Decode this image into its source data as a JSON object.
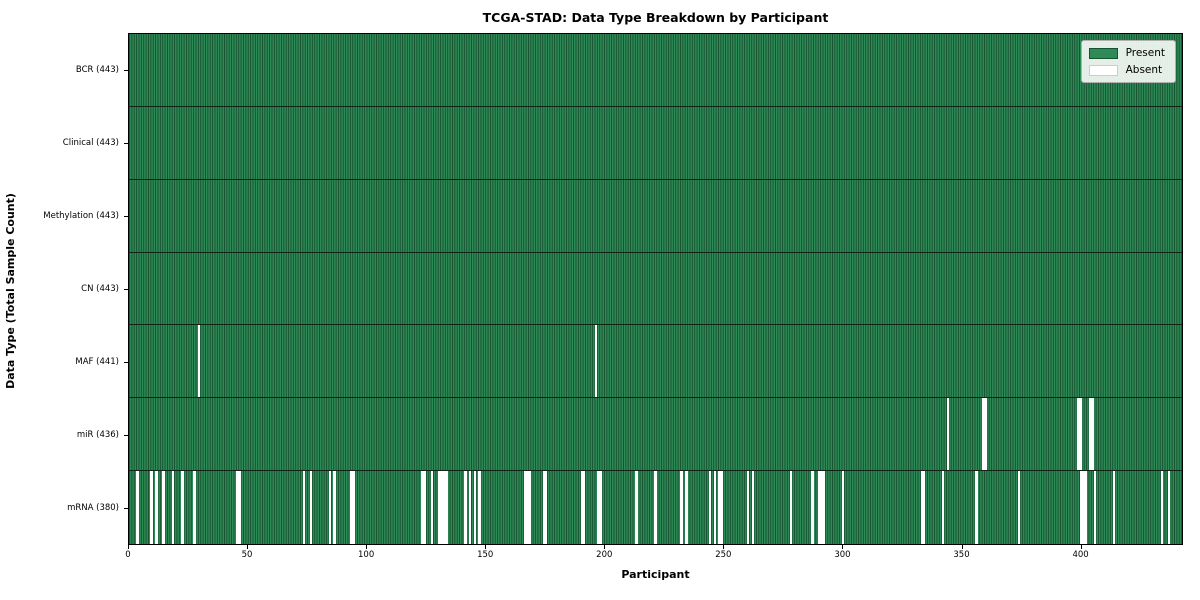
{
  "title": "TCGA-STAD: Data Type Breakdown by Participant",
  "xlabel": "Participant",
  "ylabel": "Data Type (Total Sample Count)",
  "legend": {
    "present_label": "Present",
    "absent_label": "Absent"
  },
  "colors": {
    "present": "#2e8b57",
    "present_edge": "#16522f",
    "absent": "#ffffff",
    "row_divider": "#0d2417",
    "spine": "#000000",
    "legend_bg": "#eef2ec",
    "legend_border": "#b0b0b0"
  },
  "chart_data": {
    "type": "heatmap",
    "title": "TCGA-STAD: Data Type Breakdown by Participant",
    "xlabel": "Participant",
    "ylabel": "Data Type (Total Sample Count)",
    "x_range": [
      0,
      443
    ],
    "x_ticks": [
      0,
      50,
      100,
      150,
      200,
      250,
      300,
      350,
      400
    ],
    "n_participants": 443,
    "legend_entries": [
      "Present",
      "Absent"
    ],
    "legend_position": "upper right",
    "grid": false,
    "rows": [
      {
        "name": "BCR",
        "label": "BCR (443)",
        "present_count": 443,
        "absent_participants": []
      },
      {
        "name": "Clinical",
        "label": "Clinical (443)",
        "present_count": 443,
        "absent_participants": []
      },
      {
        "name": "Methylation",
        "label": "Methylation (443)",
        "present_count": 443,
        "absent_participants": []
      },
      {
        "name": "CN",
        "label": "CN (443)",
        "present_count": 443,
        "absent_participants": []
      },
      {
        "name": "MAF",
        "label": "MAF (441)",
        "present_count": 441,
        "absent_participants": [
          29,
          196
        ]
      },
      {
        "name": "miR",
        "label": "miR (436)",
        "present_count": 436,
        "absent_participants": [
          344,
          359,
          360,
          399,
          400,
          404,
          405
        ]
      },
      {
        "name": "mRNA",
        "label": "mRNA (380)",
        "present_count": 380,
        "absent_participants": [
          3,
          9,
          11,
          14,
          18,
          22,
          27,
          45,
          46,
          73,
          76,
          84,
          86,
          93,
          94,
          123,
          124,
          127,
          130,
          131,
          132,
          133,
          141,
          143,
          145,
          147,
          166,
          167,
          168,
          174,
          175,
          190,
          191,
          197,
          198,
          213,
          221,
          232,
          234,
          244,
          246,
          248,
          249,
          260,
          262,
          278,
          287,
          290,
          291,
          292,
          300,
          333,
          334,
          342,
          356,
          374,
          400,
          401,
          402,
          406,
          414,
          434,
          437
        ]
      }
    ]
  }
}
